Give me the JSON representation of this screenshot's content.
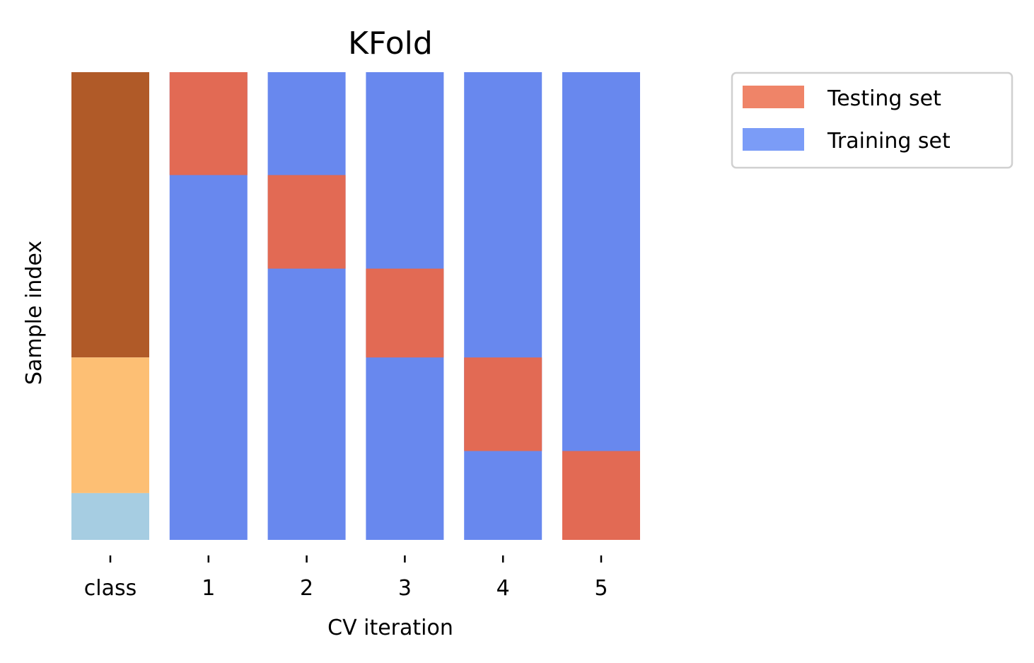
{
  "chart_data": {
    "type": "heatmap",
    "title": "KFold",
    "xlabel": "CV iteration",
    "ylabel": "Sample index",
    "categories": [
      "class",
      "1",
      "2",
      "3",
      "4",
      "5"
    ],
    "n_samples": 100,
    "class_column": {
      "label": "class",
      "segments": [
        {
          "class": 0,
          "start": 0,
          "end": 61,
          "color": "#b05a28"
        },
        {
          "class": 1,
          "start": 61,
          "end": 90,
          "color": "#fdbf74"
        },
        {
          "class": 2,
          "start": 90,
          "end": 100,
          "color": "#a6cde2"
        }
      ]
    },
    "iterations": [
      {
        "label": "1",
        "test_start": 0,
        "test_end": 22
      },
      {
        "label": "2",
        "test_start": 22,
        "test_end": 42
      },
      {
        "label": "3",
        "test_start": 42,
        "test_end": 61
      },
      {
        "label": "4",
        "test_start": 61,
        "test_end": 81
      },
      {
        "label": "5",
        "test_start": 81,
        "test_end": 100
      }
    ],
    "legend": {
      "placement": "top-right, outside plot",
      "entries": [
        {
          "label": "Testing set",
          "color": "#ef8468"
        },
        {
          "label": "Training set",
          "color": "#7b9cf7"
        }
      ]
    },
    "colors": {
      "testing": "#e26a54",
      "training": "#6888ee"
    },
    "grid": false
  }
}
